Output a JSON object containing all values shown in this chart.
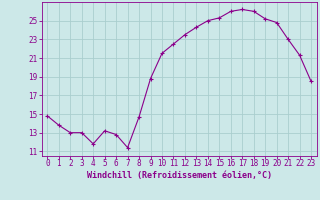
{
  "x": [
    0,
    1,
    2,
    3,
    4,
    5,
    6,
    7,
    8,
    9,
    10,
    11,
    12,
    13,
    14,
    15,
    16,
    17,
    18,
    19,
    20,
    21,
    22,
    23
  ],
  "y": [
    14.8,
    13.8,
    13.0,
    13.0,
    11.8,
    13.2,
    12.8,
    11.4,
    14.7,
    18.8,
    21.5,
    22.5,
    23.5,
    24.3,
    25.0,
    25.3,
    26.0,
    26.2,
    26.0,
    25.2,
    24.8,
    23.0,
    21.3,
    18.5
  ],
  "line_color": "#8B008B",
  "marker": "+",
  "bg_color": "#cce8e8",
  "grid_color": "#aacece",
  "xlabel": "Windchill (Refroidissement éolien,°C)",
  "xlim": [
    -0.5,
    23.5
  ],
  "ylim": [
    10.5,
    27.0
  ],
  "yticks": [
    11,
    13,
    15,
    17,
    19,
    21,
    23,
    25
  ],
  "xticks": [
    0,
    1,
    2,
    3,
    4,
    5,
    6,
    7,
    8,
    9,
    10,
    11,
    12,
    13,
    14,
    15,
    16,
    17,
    18,
    19,
    20,
    21,
    22,
    23
  ],
  "tick_color": "#8B008B",
  "label_fontsize": 6.0,
  "tick_fontsize": 5.5
}
